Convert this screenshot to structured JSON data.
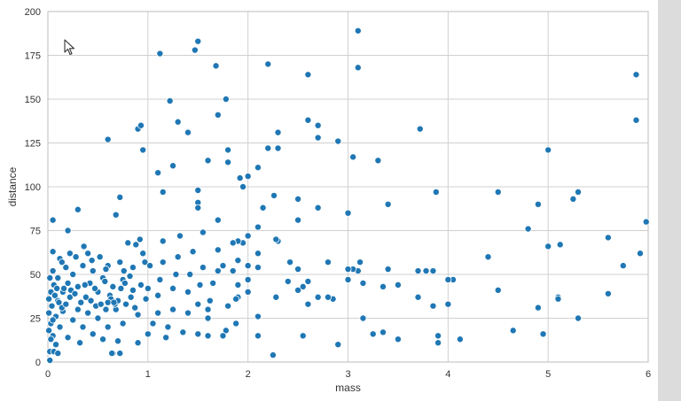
{
  "chart_data": {
    "type": "scatter",
    "xlabel": "mass",
    "ylabel": "distance",
    "xlim": [
      0,
      6
    ],
    "ylim": [
      0,
      200
    ],
    "x_ticks": [
      "0",
      "1",
      "2",
      "3",
      "4",
      "5",
      "6"
    ],
    "y_ticks": [
      "0",
      "25",
      "50",
      "75",
      "100",
      "125",
      "150",
      "175",
      "200"
    ],
    "grid": true,
    "color": "#1f77b4",
    "points": [
      [
        0.05,
        81
      ],
      [
        0.6,
        127
      ],
      [
        0.68,
        84
      ],
      [
        0.72,
        94
      ],
      [
        0.3,
        87
      ],
      [
        0.2,
        75
      ],
      [
        0.05,
        63
      ],
      [
        0.9,
        133
      ],
      [
        0.95,
        121
      ],
      [
        0.93,
        135
      ],
      [
        1.12,
        176
      ],
      [
        1.22,
        149
      ],
      [
        1.3,
        137
      ],
      [
        1.4,
        131
      ],
      [
        1.47,
        178
      ],
      [
        1.5,
        183
      ],
      [
        1.6,
        115
      ],
      [
        1.68,
        169
      ],
      [
        1.7,
        141
      ],
      [
        1.78,
        150
      ],
      [
        1.8,
        121
      ],
      [
        1.8,
        114
      ],
      [
        1.95,
        100
      ],
      [
        1.92,
        105
      ],
      [
        2.0,
        106
      ],
      [
        2.1,
        111
      ],
      [
        2.2,
        170
      ],
      [
        2.2,
        122
      ],
      [
        2.3,
        131
      ],
      [
        2.3,
        122
      ],
      [
        2.26,
        95
      ],
      [
        2.6,
        164
      ],
      [
        2.6,
        138
      ],
      [
        2.7,
        135
      ],
      [
        2.7,
        128
      ],
      [
        2.9,
        126
      ],
      [
        3.1,
        189
      ],
      [
        3.1,
        168
      ],
      [
        3.05,
        117
      ],
      [
        3.3,
        115
      ],
      [
        3.72,
        133
      ],
      [
        5.0,
        121
      ],
      [
        5.88,
        164
      ],
      [
        5.88,
        138
      ],
      [
        1.1,
        108
      ],
      [
        1.15,
        97
      ],
      [
        1.25,
        112
      ],
      [
        1.5,
        98
      ],
      [
        1.5,
        91
      ],
      [
        1.5,
        88
      ],
      [
        1.7,
        81
      ],
      [
        2.15,
        88
      ],
      [
        2.5,
        93
      ],
      [
        2.5,
        81
      ],
      [
        2.7,
        88
      ],
      [
        3.0,
        85
      ],
      [
        3.4,
        90
      ],
      [
        3.88,
        97
      ],
      [
        4.5,
        97
      ],
      [
        4.9,
        90
      ],
      [
        5.25,
        93
      ],
      [
        5.3,
        97
      ],
      [
        4.8,
        76
      ],
      [
        5.0,
        66
      ],
      [
        5.12,
        67
      ],
      [
        5.6,
        71
      ],
      [
        5.98,
        80
      ],
      [
        5.92,
        62
      ],
      [
        5.75,
        55
      ],
      [
        4.4,
        60
      ],
      [
        4.5,
        41
      ],
      [
        5.1,
        37
      ],
      [
        5.1,
        36
      ],
      [
        5.6,
        39
      ],
      [
        4.9,
        31
      ],
      [
        5.3,
        25
      ],
      [
        4.65,
        18
      ],
      [
        4.95,
        16
      ],
      [
        4.12,
        13
      ],
      [
        3.9,
        15
      ],
      [
        3.9,
        11
      ],
      [
        3.85,
        32
      ],
      [
        4.0,
        33
      ],
      [
        4.05,
        47
      ],
      [
        4.0,
        47
      ],
      [
        3.85,
        52
      ],
      [
        3.78,
        52
      ],
      [
        3.7,
        52
      ],
      [
        3.7,
        37
      ],
      [
        3.4,
        53
      ],
      [
        3.35,
        43
      ],
      [
        3.5,
        44
      ],
      [
        3.5,
        13
      ],
      [
        3.35,
        17
      ],
      [
        3.25,
        16
      ],
      [
        3.15,
        25
      ],
      [
        3.15,
        45
      ],
      [
        3.1,
        52
      ],
      [
        3.05,
        53
      ],
      [
        3.0,
        53
      ],
      [
        3.12,
        57
      ],
      [
        3.0,
        47
      ],
      [
        2.9,
        10
      ],
      [
        2.85,
        36
      ],
      [
        2.8,
        37
      ],
      [
        2.8,
        57
      ],
      [
        2.7,
        37
      ],
      [
        2.6,
        46
      ],
      [
        2.6,
        33
      ],
      [
        2.55,
        43
      ],
      [
        2.55,
        15
      ],
      [
        2.5,
        53
      ],
      [
        2.5,
        41
      ],
      [
        2.42,
        57
      ],
      [
        2.4,
        46
      ],
      [
        2.3,
        69
      ],
      [
        2.28,
        70
      ],
      [
        2.28,
        37
      ],
      [
        2.25,
        4
      ],
      [
        2.1,
        77
      ],
      [
        2.1,
        62
      ],
      [
        2.1,
        54
      ],
      [
        2.1,
        26
      ],
      [
        2.1,
        15
      ],
      [
        2.0,
        72
      ],
      [
        2.0,
        55
      ],
      [
        2.0,
        47
      ],
      [
        2.0,
        40
      ],
      [
        1.95,
        68
      ],
      [
        1.9,
        69
      ],
      [
        1.9,
        58
      ],
      [
        1.9,
        44
      ],
      [
        1.9,
        37
      ],
      [
        1.88,
        36
      ],
      [
        1.88,
        22
      ],
      [
        1.85,
        68
      ],
      [
        1.85,
        52
      ],
      [
        1.8,
        32
      ],
      [
        1.78,
        18
      ],
      [
        1.75,
        15
      ],
      [
        1.75,
        55
      ],
      [
        1.7,
        64
      ],
      [
        1.7,
        52
      ],
      [
        1.65,
        45
      ],
      [
        1.62,
        35
      ],
      [
        1.6,
        30
      ],
      [
        1.6,
        25
      ],
      [
        1.6,
        15
      ],
      [
        1.55,
        74
      ],
      [
        1.55,
        54
      ],
      [
        1.52,
        44
      ],
      [
        1.5,
        33
      ],
      [
        1.5,
        16
      ],
      [
        1.45,
        63
      ],
      [
        1.42,
        50
      ],
      [
        1.4,
        40
      ],
      [
        1.4,
        28
      ],
      [
        1.35,
        17
      ],
      [
        1.32,
        72
      ],
      [
        1.3,
        60
      ],
      [
        1.28,
        50
      ],
      [
        1.25,
        42
      ],
      [
        1.25,
        30
      ],
      [
        1.2,
        20
      ],
      [
        1.18,
        14
      ],
      [
        1.15,
        69
      ],
      [
        1.15,
        57
      ],
      [
        1.12,
        47
      ],
      [
        1.1,
        38
      ],
      [
        1.1,
        28
      ],
      [
        1.05,
        22
      ],
      [
        1.0,
        16
      ],
      [
        1.0,
        42
      ],
      [
        0.98,
        36
      ],
      [
        0.95,
        62
      ],
      [
        0.92,
        70
      ],
      [
        0.9,
        27
      ],
      [
        0.9,
        11
      ],
      [
        0.85,
        54
      ],
      [
        0.85,
        41
      ],
      [
        0.82,
        49
      ],
      [
        0.8,
        68
      ],
      [
        0.78,
        33
      ],
      [
        0.75,
        47
      ],
      [
        0.75,
        22
      ],
      [
        0.72,
        57
      ],
      [
        0.7,
        12
      ],
      [
        0.68,
        30
      ],
      [
        0.65,
        43
      ],
      [
        0.65,
        5
      ],
      [
        0.62,
        38
      ],
      [
        0.6,
        55
      ],
      [
        0.6,
        20
      ],
      [
        0.58,
        30
      ],
      [
        0.55,
        48
      ],
      [
        0.55,
        13
      ],
      [
        0.52,
        60
      ],
      [
        0.5,
        40
      ],
      [
        0.5,
        25
      ],
      [
        0.48,
        32
      ],
      [
        0.45,
        52
      ],
      [
        0.45,
        16
      ],
      [
        0.42,
        45
      ],
      [
        0.4,
        28
      ],
      [
        0.4,
        62
      ],
      [
        0.38,
        37
      ],
      [
        0.35,
        20
      ],
      [
        0.35,
        55
      ],
      [
        0.32,
        11
      ],
      [
        0.3,
        43
      ],
      [
        0.3,
        30
      ],
      [
        0.28,
        60
      ],
      [
        0.25,
        50
      ],
      [
        0.25,
        24
      ],
      [
        0.22,
        37
      ],
      [
        0.2,
        14
      ],
      [
        0.2,
        45
      ],
      [
        0.18,
        54
      ],
      [
        0.15,
        29
      ],
      [
        0.15,
        40
      ],
      [
        0.12,
        59
      ],
      [
        0.12,
        20
      ],
      [
        0.1,
        48
      ],
      [
        0.1,
        35
      ],
      [
        0.08,
        10
      ],
      [
        0.08,
        26
      ],
      [
        0.06,
        44
      ],
      [
        0.05,
        52
      ],
      [
        0.05,
        15
      ],
      [
        0.04,
        32
      ],
      [
        0.03,
        40
      ],
      [
        0.03,
        22
      ],
      [
        0.02,
        6
      ],
      [
        0.02,
        48
      ],
      [
        0.01,
        36
      ],
      [
        0.01,
        18
      ],
      [
        0.01,
        28
      ],
      [
        0.06,
        6
      ],
      [
        0.1,
        5
      ],
      [
        0.02,
        1
      ],
      [
        0.03,
        13
      ],
      [
        0.05,
        24
      ],
      [
        0.07,
        38
      ],
      [
        0.09,
        42
      ],
      [
        0.11,
        34
      ],
      [
        0.14,
        31
      ],
      [
        0.16,
        42
      ],
      [
        0.18,
        33
      ],
      [
        0.23,
        41
      ],
      [
        0.27,
        39
      ],
      [
        0.33,
        34
      ],
      [
        0.37,
        44
      ],
      [
        0.43,
        35
      ],
      [
        0.47,
        42
      ],
      [
        0.53,
        33
      ],
      [
        0.57,
        46
      ],
      [
        0.63,
        36
      ],
      [
        0.67,
        33
      ],
      [
        0.73,
        42
      ],
      [
        0.77,
        45
      ],
      [
        0.83,
        37
      ],
      [
        0.87,
        31
      ],
      [
        0.93,
        44
      ],
      [
        0.97,
        57
      ],
      [
        0.64,
        5
      ],
      [
        0.72,
        5
      ],
      [
        1.02,
        55
      ],
      [
        0.88,
        67
      ],
      [
        0.76,
        52
      ],
      [
        0.58,
        53
      ],
      [
        0.44,
        58
      ],
      [
        0.36,
        66
      ],
      [
        0.22,
        62
      ],
      [
        0.14,
        57
      ],
      [
        0.6,
        34
      ],
      [
        0.7,
        35
      ],
      [
        0.66,
        34
      ]
    ]
  }
}
